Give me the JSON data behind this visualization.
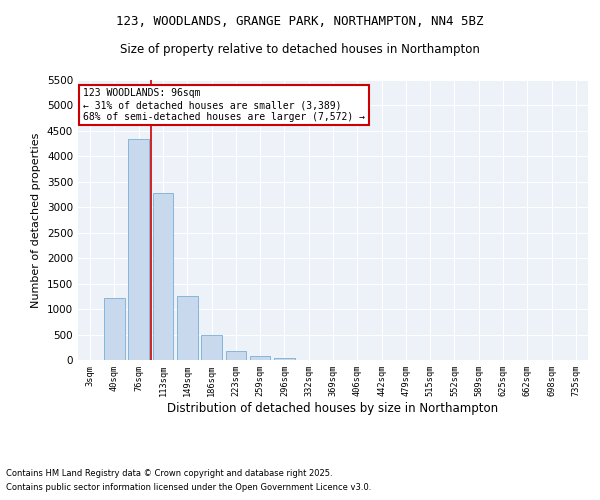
{
  "title1": "123, WOODLANDS, GRANGE PARK, NORTHAMPTON, NN4 5BZ",
  "title2": "Size of property relative to detached houses in Northampton",
  "xlabel": "Distribution of detached houses by size in Northampton",
  "ylabel": "Number of detached properties",
  "categories": [
    "3sqm",
    "40sqm",
    "76sqm",
    "113sqm",
    "149sqm",
    "186sqm",
    "223sqm",
    "259sqm",
    "296sqm",
    "332sqm",
    "369sqm",
    "406sqm",
    "442sqm",
    "479sqm",
    "515sqm",
    "552sqm",
    "589sqm",
    "625sqm",
    "662sqm",
    "698sqm",
    "735sqm"
  ],
  "values": [
    0,
    1220,
    4350,
    3280,
    1250,
    490,
    175,
    75,
    40,
    5,
    0,
    0,
    0,
    0,
    0,
    0,
    0,
    0,
    0,
    0,
    0
  ],
  "bar_color": "#c8d9ee",
  "bar_edge_color": "#7aafd4",
  "vline_x_index": 2.5,
  "vline_color": "#cc0000",
  "annotation_text": "123 WOODLANDS: 96sqm\n← 31% of detached houses are smaller (3,389)\n68% of semi-detached houses are larger (7,572) →",
  "annotation_box_color": "#ffffff",
  "annotation_box_edge": "#cc0000",
  "ylim": [
    0,
    5500
  ],
  "yticks": [
    0,
    500,
    1000,
    1500,
    2000,
    2500,
    3000,
    3500,
    4000,
    4500,
    5000,
    5500
  ],
  "footnote1": "Contains HM Land Registry data © Crown copyright and database right 2025.",
  "footnote2": "Contains public sector information licensed under the Open Government Licence v3.0.",
  "background_color": "#edf2f9",
  "grid_color": "#ffffff",
  "fig_bg_color": "#ffffff"
}
